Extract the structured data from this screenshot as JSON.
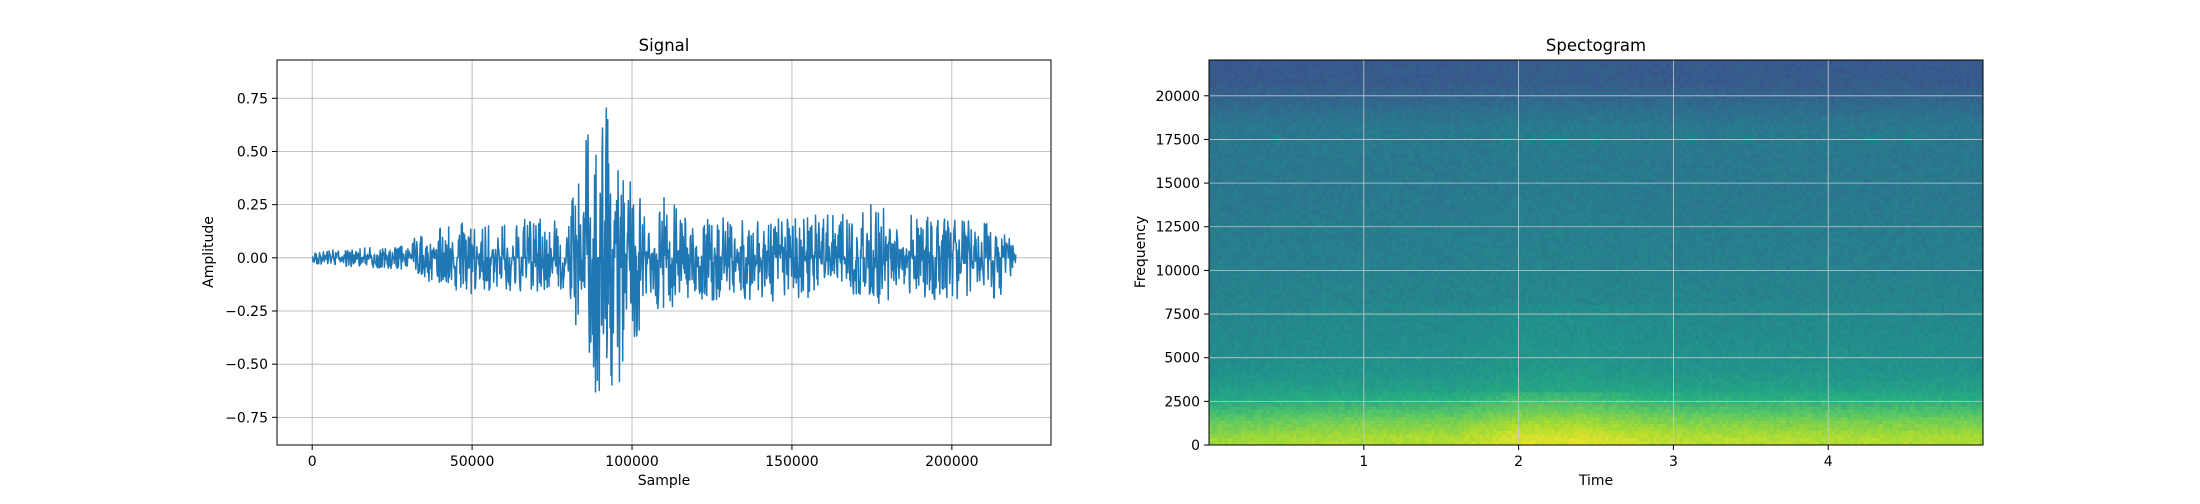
{
  "chart_data": [
    {
      "type": "line",
      "title": "Signal",
      "xlabel": "Sample",
      "ylabel": "Amplitude",
      "xlim": [
        -11000,
        231000
      ],
      "ylim": [
        -0.88,
        0.93
      ],
      "xticks": [
        0,
        50000,
        100000,
        150000,
        200000
      ],
      "xtick_labels": [
        "0",
        "50000",
        "100000",
        "150000",
        "200000"
      ],
      "yticks": [
        -0.75,
        -0.5,
        -0.25,
        0.0,
        0.25,
        0.5,
        0.75
      ],
      "ytick_labels": [
        "−0.75",
        "−0.50",
        "−0.25",
        "0.00",
        "0.25",
        "0.50",
        "0.75"
      ],
      "grid": true,
      "color": "#1f77b4",
      "series": [
        {
          "x": [
            0,
            10000,
            20000,
            30000,
            36000,
            40000,
            50000,
            60000,
            70000,
            80000,
            84000,
            86000,
            88000,
            90000,
            92000,
            95000,
            97000,
            100000,
            105000,
            110000,
            120000,
            130000,
            140000,
            150000,
            160000,
            170000,
            178000,
            180000,
            190000,
            200000,
            210000,
            215000,
            220000
          ],
          "y_max": [
            0.03,
            0.04,
            0.05,
            0.06,
            0.16,
            0.14,
            0.18,
            0.16,
            0.2,
            0.18,
            0.47,
            0.6,
            0.55,
            0.62,
            0.85,
            0.47,
            0.45,
            0.35,
            0.24,
            0.29,
            0.19,
            0.2,
            0.19,
            0.19,
            0.21,
            0.2,
            0.29,
            0.2,
            0.2,
            0.19,
            0.17,
            0.15,
            0.06
          ],
          "y_min": [
            -0.03,
            -0.04,
            -0.05,
            -0.06,
            -0.12,
            -0.14,
            -0.17,
            -0.16,
            -0.18,
            -0.15,
            -0.44,
            -0.53,
            -0.72,
            -0.79,
            -0.68,
            -0.62,
            -0.55,
            -0.43,
            -0.26,
            -0.25,
            -0.2,
            -0.2,
            -0.2,
            -0.22,
            -0.21,
            -0.19,
            -0.22,
            -0.2,
            -0.2,
            -0.21,
            -0.2,
            -0.2,
            -0.05
          ]
        }
      ]
    },
    {
      "type": "heatmap",
      "title": "Spectogram",
      "xlabel": "Time",
      "ylabel": "Frequency",
      "xlim": [
        0.0,
        5.0
      ],
      "ylim": [
        0,
        22050
      ],
      "xticks": [
        1,
        2,
        3,
        4
      ],
      "xtick_labels": [
        "1",
        "2",
        "3",
        "4"
      ],
      "yticks": [
        0,
        2500,
        5000,
        7500,
        10000,
        12500,
        15000,
        17500,
        20000
      ],
      "ytick_labels": [
        "0",
        "2500",
        "5000",
        "7500",
        "10000",
        "12500",
        "15000",
        "17500",
        "20000"
      ],
      "grid": true,
      "colormap": "viridis",
      "frequency_bands": [
        {
          "from": 0,
          "to": 800,
          "level": 0.85
        },
        {
          "from": 800,
          "to": 2000,
          "level": 0.75
        },
        {
          "from": 2000,
          "to": 3500,
          "level": 0.58
        },
        {
          "from": 3500,
          "to": 4800,
          "level": 0.5
        },
        {
          "from": 4800,
          "to": 8000,
          "level": 0.46
        },
        {
          "from": 8000,
          "to": 12000,
          "level": 0.43
        },
        {
          "from": 12000,
          "to": 17000,
          "level": 0.4
        },
        {
          "from": 17000,
          "to": 19500,
          "level": 0.4
        },
        {
          "from": 19500,
          "to": 22050,
          "level": 0.28
        }
      ],
      "time_loudness": [
        {
          "t": 0.0,
          "level": 0.0
        },
        {
          "t": 0.8,
          "level": 0.03
        },
        {
          "t": 1.6,
          "level": 0.04
        },
        {
          "t": 2.0,
          "level": 0.1
        },
        {
          "t": 2.4,
          "level": 0.1
        },
        {
          "t": 3.0,
          "level": 0.05
        },
        {
          "t": 4.0,
          "level": 0.04
        },
        {
          "t": 5.0,
          "level": 0.03
        }
      ]
    }
  ]
}
